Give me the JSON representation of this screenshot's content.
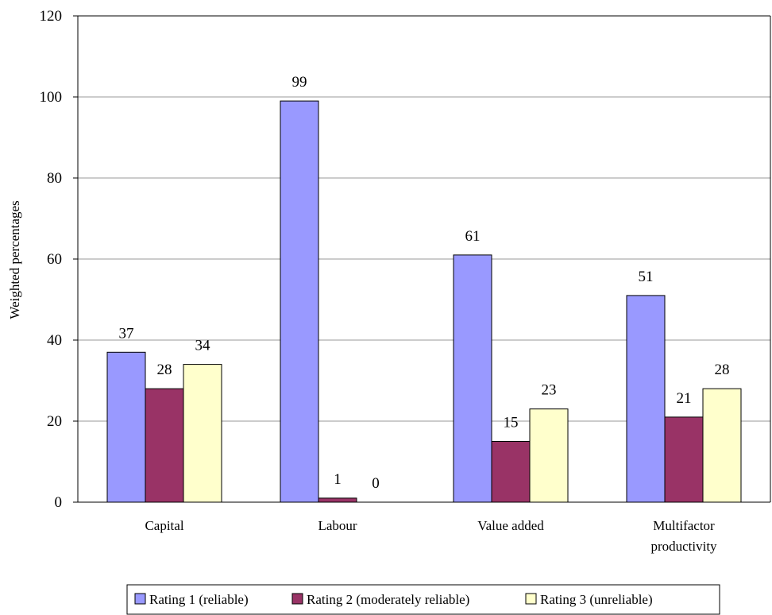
{
  "chart_data": {
    "type": "bar",
    "categories": [
      [
        "Capital"
      ],
      [
        "Labour"
      ],
      [
        "Value added"
      ],
      [
        "Multifactor",
        "productivity"
      ]
    ],
    "series": [
      {
        "name": "Rating 1 (reliable)",
        "color": "#9999ff",
        "values": [
          37,
          99,
          61,
          51
        ],
        "labels": [
          "37",
          "99",
          "61",
          "51"
        ]
      },
      {
        "name": "Rating 2 (moderately reliable)",
        "color": "#993366",
        "values": [
          28,
          1,
          15,
          21
        ],
        "labels": [
          "28",
          "1",
          "15",
          "21"
        ]
      },
      {
        "name": "Rating 3 (unreliable)",
        "color": "#ffffcc",
        "values": [
          34,
          0,
          23,
          28
        ],
        "labels": [
          "34",
          "0",
          "23",
          "28"
        ]
      }
    ],
    "ylabel": "Weighted percentages",
    "ylim": [
      0,
      120
    ],
    "yticks": [
      0,
      20,
      40,
      60,
      80,
      100,
      120
    ],
    "grid": true,
    "legend": "bottom"
  }
}
